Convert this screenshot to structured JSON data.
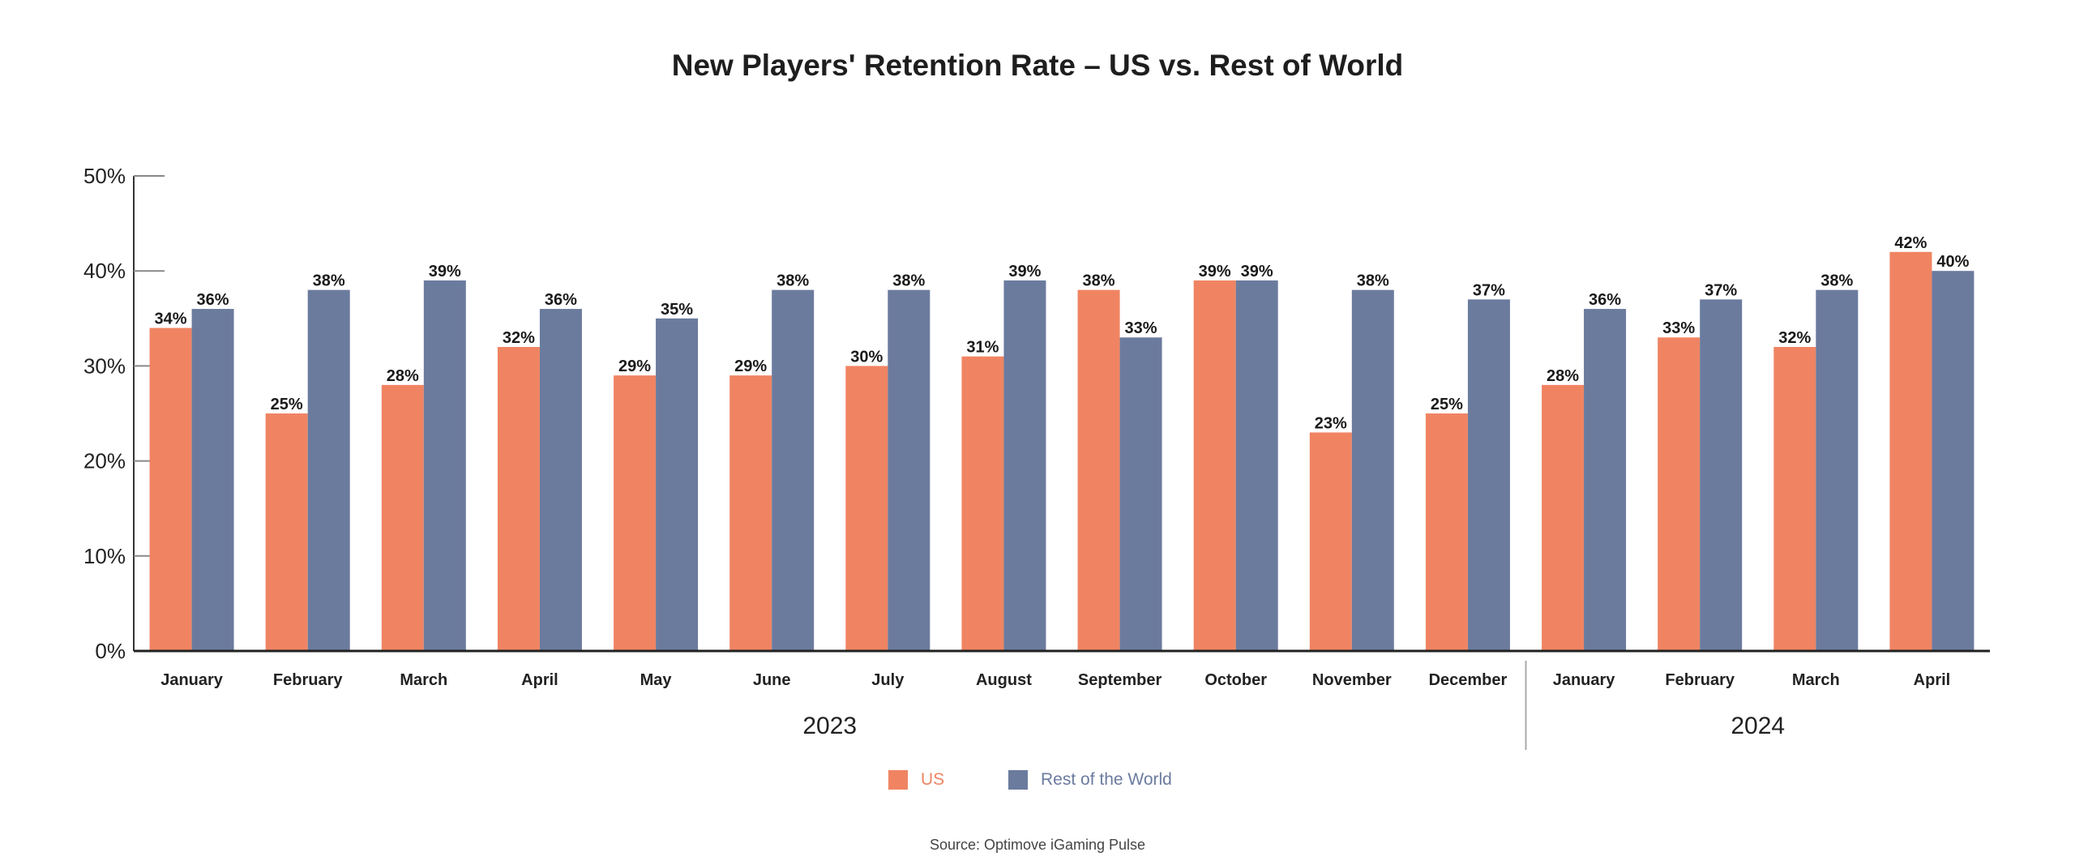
{
  "chart_data": {
    "type": "bar",
    "title": "New Players' Retention Rate – US vs. Rest of World",
    "categories": [
      "January",
      "February",
      "March",
      "April",
      "May",
      "June",
      "July",
      "August",
      "September",
      "October",
      "November",
      "December",
      "January",
      "February",
      "March",
      "April"
    ],
    "groups": [
      {
        "label": "2023",
        "from": 0,
        "to": 11
      },
      {
        "label": "2024",
        "from": 12,
        "to": 15
      }
    ],
    "series": [
      {
        "name": "US",
        "color": "#f08462",
        "values": [
          34,
          25,
          28,
          32,
          29,
          29,
          30,
          31,
          38,
          39,
          23,
          25,
          28,
          33,
          32,
          42
        ]
      },
      {
        "name": "Rest of the World",
        "color": "#6b7b9e",
        "values": [
          36,
          38,
          39,
          36,
          35,
          38,
          38,
          39,
          33,
          39,
          38,
          37,
          36,
          37,
          38,
          40
        ]
      }
    ],
    "yticks": [
      "0%",
      "10%",
      "20%",
      "30%",
      "40%",
      "50%"
    ],
    "ylim": [
      0,
      50
    ],
    "value_suffix": "%",
    "xlabel": "",
    "ylabel": "",
    "legend_position": "bottom-center"
  },
  "legend": {
    "us_label": "US",
    "row_label": "Rest of the World",
    "us_color": "#f08462",
    "row_color": "#6b7b9e"
  },
  "source": "Source: Optimove iGaming Pulse"
}
